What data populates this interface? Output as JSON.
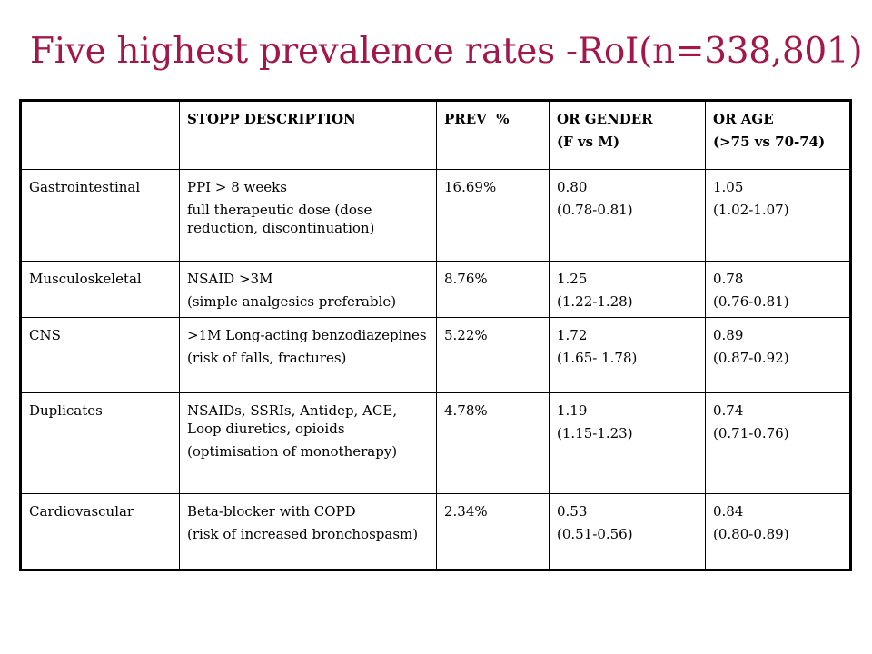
{
  "title": "Five highest prevalence rates -RoI(n=338,801)",
  "table": {
    "headers": [
      [
        "",
        ""
      ],
      [
        "STOPP DESCRIPTION",
        ""
      ],
      [
        "PREV  %",
        ""
      ],
      [
        "OR GENDER",
        "(F vs M)"
      ],
      [
        "OR AGE",
        "(>75 vs 70-74)"
      ]
    ],
    "rows": [
      {
        "category": "Gastrointestinal",
        "description": "PPI > 8 weeks",
        "note": "full therapeutic dose (dose reduction, discontinuation)",
        "prev": "16.69%",
        "or_gender": "0.80",
        "or_gender_ci": "(0.78-0.81)",
        "or_age": "1.05",
        "or_age_ci": "(1.02-1.07)"
      },
      {
        "category": "Musculoskeletal",
        "description": "NSAID >3M",
        "note": "(simple analgesics preferable)",
        "prev": "8.76%",
        "or_gender": "1.25",
        "or_gender_ci": "(1.22-1.28)",
        "or_age": "0.78",
        "or_age_ci": "(0.76-0.81)"
      },
      {
        "category": "CNS",
        "description": ">1M Long-acting benzodiazepines",
        "note": "(risk of falls, fractures)",
        "prev": "5.22%",
        "or_gender": "1.72",
        "or_gender_ci": "(1.65- 1.78)",
        "or_age": "0.89",
        "or_age_ci": "(0.87-0.92)"
      },
      {
        "category": "Duplicates",
        "description": "NSAIDs, SSRIs, Antidep, ACE, Loop diuretics, opioids",
        "note": "(optimisation of monotherapy)",
        "prev": "4.78%",
        "or_gender": "1.19",
        "or_gender_ci": "(1.15-1.23)",
        "or_age": "0.74",
        "or_age_ci": "(0.71-0.76)"
      },
      {
        "category": "Cardiovascular",
        "description": "Beta-blocker with COPD",
        "note": "(risk of increased bronchospasm)",
        "prev": "2.34%",
        "or_gender": "0.53",
        "or_gender_ci": "(0.51-0.56)",
        "or_age": "0.84",
        "or_age_ci": "(0.80-0.89)"
      }
    ]
  },
  "colors": {
    "title": "#a3174a",
    "border": "#000000",
    "text": "#000000",
    "background": "#ffffff"
  }
}
